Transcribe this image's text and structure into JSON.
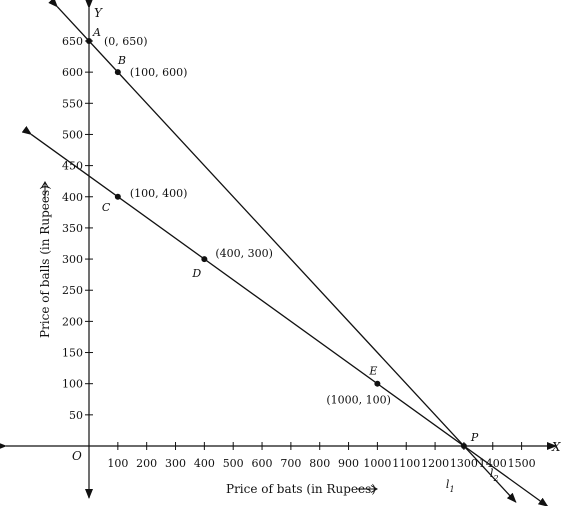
{
  "chart_data": {
    "type": "line",
    "xlabel": "Price of bats (in Rupees)",
    "ylabel": "Price of balls (in Rupees)",
    "x_axis_letter": "X",
    "y_axis_letter": "Y",
    "origin_label": "O",
    "xlim": [
      0,
      1550
    ],
    "ylim": [
      0,
      650
    ],
    "x_ticks": [
      100,
      200,
      300,
      400,
      500,
      600,
      700,
      800,
      900,
      1000,
      1100,
      1200,
      1300,
      1400,
      1500
    ],
    "y_ticks": [
      50,
      100,
      150,
      200,
      250,
      300,
      350,
      400,
      450,
      500,
      550,
      600,
      650
    ],
    "series": [
      {
        "name": "l1",
        "name_base": "l",
        "name_sub": "1",
        "x": [
          0,
          100,
          1300
        ],
        "y": [
          650,
          600,
          0
        ]
      },
      {
        "name": "l2",
        "name_base": "l",
        "name_sub": "2",
        "x": [
          100,
          400,
          1000,
          1300
        ],
        "y": [
          400,
          300,
          100,
          0
        ]
      }
    ],
    "points": [
      {
        "letter": "A",
        "label": "(0, 650)",
        "x": 0,
        "y": 650
      },
      {
        "letter": "B",
        "label": "(100, 600)",
        "x": 100,
        "y": 600
      },
      {
        "letter": "C",
        "label": "(100, 400)",
        "x": 100,
        "y": 400
      },
      {
        "letter": "D",
        "label": "(400, 300)",
        "x": 400,
        "y": 300
      },
      {
        "letter": "E",
        "label": "(1000, 100)",
        "x": 1000,
        "y": 100
      },
      {
        "letter": "P",
        "label": "",
        "x": 1300,
        "y": 0
      }
    ],
    "grid": false,
    "legend": "none"
  }
}
